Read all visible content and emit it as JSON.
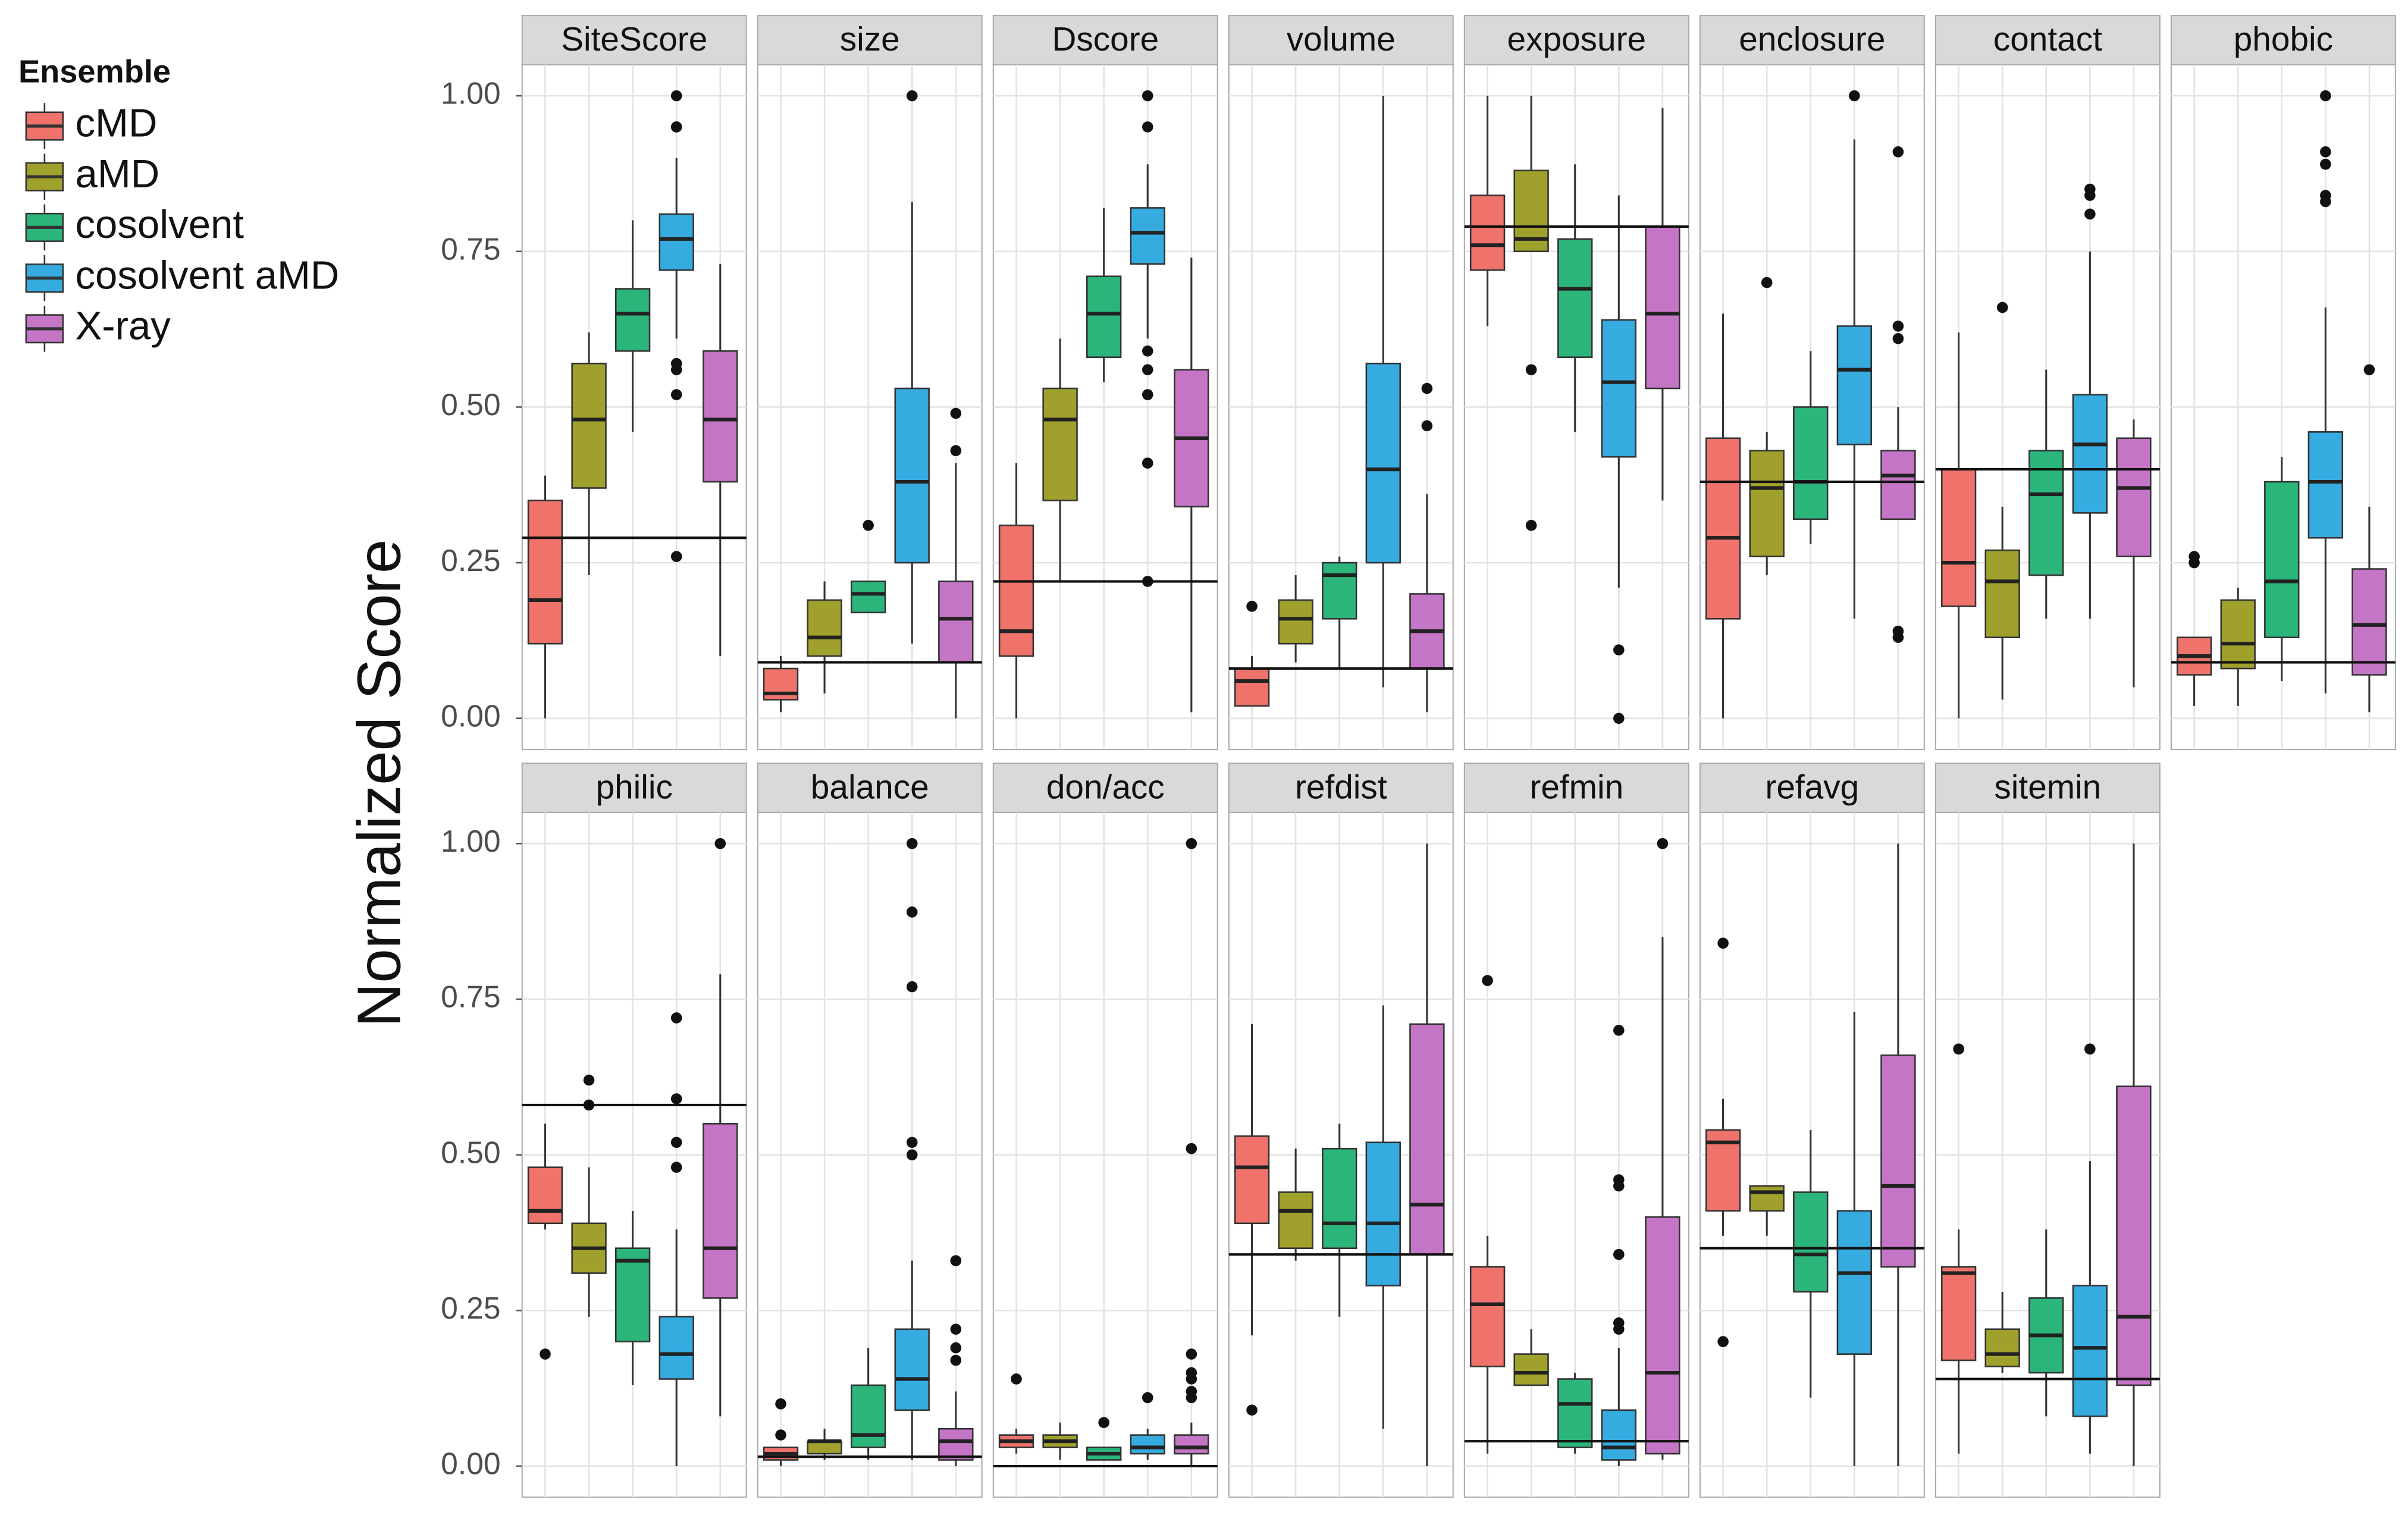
{
  "chart_data": {
    "type": "box",
    "y_label": "Normalized Score",
    "legend_title": "Ensemble",
    "ylim": [
      -0.05,
      1.05
    ],
    "yticks": [
      {
        "value": 0,
        "label": "0.00"
      },
      {
        "value": 0.25,
        "label": "0.25"
      },
      {
        "value": 0.5,
        "label": "0.50"
      },
      {
        "value": 0.75,
        "label": "0.75"
      },
      {
        "value": 1,
        "label": "1.00"
      }
    ],
    "grid": true,
    "series": [
      {
        "name": "cMD",
        "color": "#ef736b"
      },
      {
        "name": "aMD",
        "color": "#a0a12c"
      },
      {
        "name": "cosolvent",
        "color": "#2cb57b"
      },
      {
        "name": "cosolvent aMD",
        "color": "#35abe0"
      },
      {
        "name": "X-ray",
        "color": "#c575c6"
      }
    ],
    "panels": [
      {
        "title": "SiteScore",
        "reference": 0.29,
        "boxes": [
          {
            "min": 0,
            "q1": 0.12,
            "median": 0.19,
            "q3": 0.35,
            "max": 0.39
          },
          {
            "min": 0.23,
            "q1": 0.37,
            "median": 0.48,
            "q3": 0.57,
            "max": 0.62
          },
          {
            "min": 0.46,
            "q1": 0.59,
            "median": 0.65,
            "q3": 0.69,
            "max": 0.8
          },
          {
            "min": 0.61,
            "q1": 0.72,
            "median": 0.77,
            "q3": 0.81,
            "max": 0.9,
            "outliers": [
              1.0,
              0.95,
              0.95,
              0.57,
              0.56,
              0.52,
              0.26
            ]
          },
          {
            "min": 0.1,
            "q1": 0.38,
            "median": 0.48,
            "q3": 0.59,
            "max": 0.73
          }
        ]
      },
      {
        "title": "size",
        "reference": 0.09,
        "boxes": [
          {
            "min": 0.01,
            "q1": 0.03,
            "median": 0.04,
            "q3": 0.08,
            "max": 0.1
          },
          {
            "min": 0.04,
            "q1": 0.1,
            "median": 0.13,
            "q3": 0.19,
            "max": 0.22
          },
          {
            "min": 0.17,
            "q1": 0.17,
            "median": 0.2,
            "q3": 0.22,
            "max": 0.22,
            "outliers": [
              0.31
            ]
          },
          {
            "min": 0.12,
            "q1": 0.25,
            "median": 0.38,
            "q3": 0.53,
            "max": 0.83,
            "outliers": [
              1.0
            ]
          },
          {
            "min": 0,
            "q1": 0.09,
            "median": 0.16,
            "q3": 0.22,
            "max": 0.41,
            "outliers": [
              0.49,
              0.43
            ]
          }
        ]
      },
      {
        "title": "Dscore",
        "reference": 0.22,
        "boxes": [
          {
            "min": 0,
            "q1": 0.1,
            "median": 0.14,
            "q3": 0.31,
            "max": 0.41
          },
          {
            "min": 0.22,
            "q1": 0.35,
            "median": 0.48,
            "q3": 0.53,
            "max": 0.61
          },
          {
            "min": 0.54,
            "q1": 0.58,
            "median": 0.65,
            "q3": 0.71,
            "max": 0.82
          },
          {
            "min": 0.61,
            "q1": 0.73,
            "median": 0.78,
            "q3": 0.82,
            "max": 0.89,
            "outliers": [
              1.0,
              0.95,
              0.59,
              0.56,
              0.52,
              0.41,
              0.22
            ]
          },
          {
            "min": 0.01,
            "q1": 0.34,
            "median": 0.45,
            "q3": 0.56,
            "max": 0.74
          }
        ]
      },
      {
        "title": "volume",
        "reference": 0.08,
        "boxes": [
          {
            "min": 0.02,
            "q1": 0.02,
            "median": 0.06,
            "q3": 0.08,
            "max": 0.1,
            "outliers": [
              0.18
            ]
          },
          {
            "min": 0.09,
            "q1": 0.12,
            "median": 0.16,
            "q3": 0.19,
            "max": 0.23
          },
          {
            "min": 0.08,
            "q1": 0.16,
            "median": 0.23,
            "q3": 0.25,
            "max": 0.26
          },
          {
            "min": 0.05,
            "q1": 0.25,
            "median": 0.4,
            "q3": 0.57,
            "max": 1.0
          },
          {
            "min": 0.01,
            "q1": 0.08,
            "median": 0.14,
            "q3": 0.2,
            "max": 0.36,
            "outliers": [
              0.53,
              0.47
            ]
          }
        ]
      },
      {
        "title": "exposure",
        "reference": 0.79,
        "boxes": [
          {
            "min": 0.63,
            "q1": 0.72,
            "median": 0.76,
            "q3": 0.84,
            "max": 1.0
          },
          {
            "min": 0.75,
            "q1": 0.75,
            "median": 0.77,
            "q3": 0.88,
            "max": 1.0,
            "outliers": [
              0.56,
              0.31
            ]
          },
          {
            "min": 0.46,
            "q1": 0.58,
            "median": 0.69,
            "q3": 0.77,
            "max": 0.89
          },
          {
            "min": 0.21,
            "q1": 0.42,
            "median": 0.54,
            "q3": 0.64,
            "max": 0.84,
            "outliers": [
              0.11,
              0.0
            ]
          },
          {
            "min": 0.35,
            "q1": 0.53,
            "median": 0.65,
            "q3": 0.79,
            "max": 0.98
          }
        ]
      },
      {
        "title": "enclosure",
        "reference": 0.38,
        "boxes": [
          {
            "min": 0,
            "q1": 0.16,
            "median": 0.29,
            "q3": 0.45,
            "max": 0.65
          },
          {
            "min": 0.23,
            "q1": 0.26,
            "median": 0.37,
            "q3": 0.43,
            "max": 0.46,
            "outliers": [
              0.7
            ]
          },
          {
            "min": 0.28,
            "q1": 0.32,
            "median": 0.38,
            "q3": 0.5,
            "max": 0.59
          },
          {
            "min": 0.16,
            "q1": 0.44,
            "median": 0.56,
            "q3": 0.63,
            "max": 0.93,
            "outliers": [
              1.0
            ]
          },
          {
            "min": 0.32,
            "q1": 0.32,
            "median": 0.39,
            "q3": 0.43,
            "max": 0.5,
            "outliers": [
              0.91,
              0.63,
              0.61,
              0.14,
              0.13
            ]
          }
        ]
      },
      {
        "title": "contact",
        "reference": 0.4,
        "boxes": [
          {
            "min": 0,
            "q1": 0.18,
            "median": 0.25,
            "q3": 0.4,
            "max": 0.62
          },
          {
            "min": 0.03,
            "q1": 0.13,
            "median": 0.22,
            "q3": 0.27,
            "max": 0.34,
            "outliers": [
              0.66
            ]
          },
          {
            "min": 0.16,
            "q1": 0.23,
            "median": 0.36,
            "q3": 0.43,
            "max": 0.56
          },
          {
            "min": 0.16,
            "q1": 0.33,
            "median": 0.44,
            "q3": 0.52,
            "max": 0.75,
            "outliers": [
              0.85,
              0.84,
              0.81
            ]
          },
          {
            "min": 0.05,
            "q1": 0.26,
            "median": 0.37,
            "q3": 0.45,
            "max": 0.48
          }
        ]
      },
      {
        "title": "phobic",
        "reference": 0.09,
        "boxes": [
          {
            "min": 0.02,
            "q1": 0.07,
            "median": 0.1,
            "q3": 0.13,
            "max": 0.13,
            "outliers": [
              0.26,
              0.25
            ]
          },
          {
            "min": 0.02,
            "q1": 0.08,
            "median": 0.12,
            "q3": 0.19,
            "max": 0.21
          },
          {
            "min": 0.06,
            "q1": 0.13,
            "median": 0.22,
            "q3": 0.38,
            "max": 0.42
          },
          {
            "min": 0.04,
            "q1": 0.29,
            "median": 0.38,
            "q3": 0.46,
            "max": 0.66,
            "outliers": [
              1.0,
              0.91,
              0.89,
              0.84,
              0.83
            ]
          },
          {
            "min": 0.01,
            "q1": 0.07,
            "median": 0.15,
            "q3": 0.24,
            "max": 0.34,
            "outliers": [
              0.56
            ]
          }
        ]
      },
      {
        "title": "philic",
        "reference": 0.58,
        "boxes": [
          {
            "min": 0.38,
            "q1": 0.39,
            "median": 0.41,
            "q3": 0.48,
            "max": 0.55,
            "outliers": [
              0.18
            ]
          },
          {
            "min": 0.24,
            "q1": 0.31,
            "median": 0.35,
            "q3": 0.39,
            "max": 0.48,
            "outliers": [
              0.62,
              0.58
            ]
          },
          {
            "min": 0.13,
            "q1": 0.2,
            "median": 0.33,
            "q3": 0.35,
            "max": 0.41
          },
          {
            "min": 0,
            "q1": 0.14,
            "median": 0.18,
            "q3": 0.24,
            "max": 0.38,
            "outliers": [
              0.72,
              0.59,
              0.52,
              0.48
            ]
          },
          {
            "min": 0.08,
            "q1": 0.27,
            "median": 0.35,
            "q3": 0.55,
            "max": 0.79,
            "outliers": [
              1.0
            ]
          }
        ]
      },
      {
        "title": "balance",
        "reference": 0.015,
        "boxes": [
          {
            "min": 0,
            "q1": 0.01,
            "median": 0.02,
            "q3": 0.03,
            "max": 0.03,
            "outliers": [
              0.1,
              0.05
            ]
          },
          {
            "min": 0.01,
            "q1": 0.02,
            "median": 0.04,
            "q3": 0.04,
            "max": 0.06
          },
          {
            "min": 0.01,
            "q1": 0.03,
            "median": 0.05,
            "q3": 0.13,
            "max": 0.19
          },
          {
            "min": 0.01,
            "q1": 0.09,
            "median": 0.14,
            "q3": 0.22,
            "max": 0.33,
            "outliers": [
              1.0,
              0.89,
              0.77,
              0.52,
              0.5
            ]
          },
          {
            "min": 0,
            "q1": 0.01,
            "median": 0.04,
            "q3": 0.06,
            "max": 0.12,
            "outliers": [
              0.33,
              0.22,
              0.19,
              0.17
            ]
          }
        ]
      },
      {
        "title": "don/acc",
        "reference": 0,
        "boxes": [
          {
            "min": 0.02,
            "q1": 0.03,
            "median": 0.04,
            "q3": 0.05,
            "max": 0.06,
            "outliers": [
              0.14
            ]
          },
          {
            "min": 0.01,
            "q1": 0.03,
            "median": 0.04,
            "q3": 0.05,
            "max": 0.07
          },
          {
            "min": 0.01,
            "q1": 0.01,
            "median": 0.02,
            "q3": 0.03,
            "max": 0.03,
            "outliers": [
              0.07
            ]
          },
          {
            "min": 0.01,
            "q1": 0.02,
            "median": 0.03,
            "q3": 0.05,
            "max": 0.06,
            "outliers": [
              0.11
            ]
          },
          {
            "min": 0,
            "q1": 0.02,
            "median": 0.03,
            "q3": 0.05,
            "max": 0.07,
            "outliers": [
              1.0,
              0.51,
              0.18,
              0.15,
              0.14,
              0.12,
              0.11
            ]
          }
        ]
      },
      {
        "title": "refdist",
        "reference": 0.34,
        "boxes": [
          {
            "min": 0.21,
            "q1": 0.39,
            "median": 0.48,
            "q3": 0.53,
            "max": 0.71,
            "outliers": [
              0.09
            ]
          },
          {
            "min": 0.33,
            "q1": 0.35,
            "median": 0.41,
            "q3": 0.44,
            "max": 0.51
          },
          {
            "min": 0.24,
            "q1": 0.35,
            "median": 0.39,
            "q3": 0.51,
            "max": 0.55
          },
          {
            "min": 0.06,
            "q1": 0.29,
            "median": 0.39,
            "q3": 0.52,
            "max": 0.74
          },
          {
            "min": 0,
            "q1": 0.34,
            "median": 0.42,
            "q3": 0.71,
            "max": 1.0
          }
        ]
      },
      {
        "title": "refmin",
        "reference": 0.04,
        "boxes": [
          {
            "min": 0.02,
            "q1": 0.16,
            "median": 0.26,
            "q3": 0.32,
            "max": 0.37,
            "outliers": [
              0.78
            ]
          },
          {
            "min": 0.13,
            "q1": 0.13,
            "median": 0.15,
            "q3": 0.18,
            "max": 0.22
          },
          {
            "min": 0.02,
            "q1": 0.03,
            "median": 0.1,
            "q3": 0.14,
            "max": 0.15
          },
          {
            "min": 0,
            "q1": 0.01,
            "median": 0.03,
            "q3": 0.09,
            "max": 0.19,
            "outliers": [
              0.7,
              0.46,
              0.45,
              0.34,
              0.23,
              0.22
            ]
          },
          {
            "min": 0.01,
            "q1": 0.02,
            "median": 0.15,
            "q3": 0.4,
            "max": 0.85,
            "outliers": [
              1.0
            ]
          }
        ]
      },
      {
        "title": "refavg",
        "reference": 0.35,
        "boxes": [
          {
            "min": 0.37,
            "q1": 0.41,
            "median": 0.52,
            "q3": 0.54,
            "max": 0.59,
            "outliers": [
              0.84,
              0.2
            ]
          },
          {
            "min": 0.37,
            "q1": 0.41,
            "median": 0.44,
            "q3": 0.45,
            "max": 0.45
          },
          {
            "min": 0.11,
            "q1": 0.28,
            "median": 0.34,
            "q3": 0.44,
            "max": 0.54
          },
          {
            "min": 0,
            "q1": 0.18,
            "median": 0.31,
            "q3": 0.41,
            "max": 0.73
          },
          {
            "min": 0,
            "q1": 0.32,
            "median": 0.45,
            "q3": 0.66,
            "max": 1.0
          }
        ]
      },
      {
        "title": "sitemin",
        "reference": 0.14,
        "boxes": [
          {
            "min": 0.02,
            "q1": 0.17,
            "median": 0.31,
            "q3": 0.32,
            "max": 0.38,
            "outliers": [
              0.67
            ]
          },
          {
            "min": 0.15,
            "q1": 0.16,
            "median": 0.18,
            "q3": 0.22,
            "max": 0.28
          },
          {
            "min": 0.08,
            "q1": 0.15,
            "median": 0.21,
            "q3": 0.27,
            "max": 0.38
          },
          {
            "min": 0.02,
            "q1": 0.08,
            "median": 0.19,
            "q3": 0.29,
            "max": 0.49,
            "outliers": [
              0.67
            ]
          },
          {
            "min": 0,
            "q1": 0.13,
            "median": 0.24,
            "q3": 0.61,
            "max": 1.0
          }
        ]
      }
    ]
  }
}
